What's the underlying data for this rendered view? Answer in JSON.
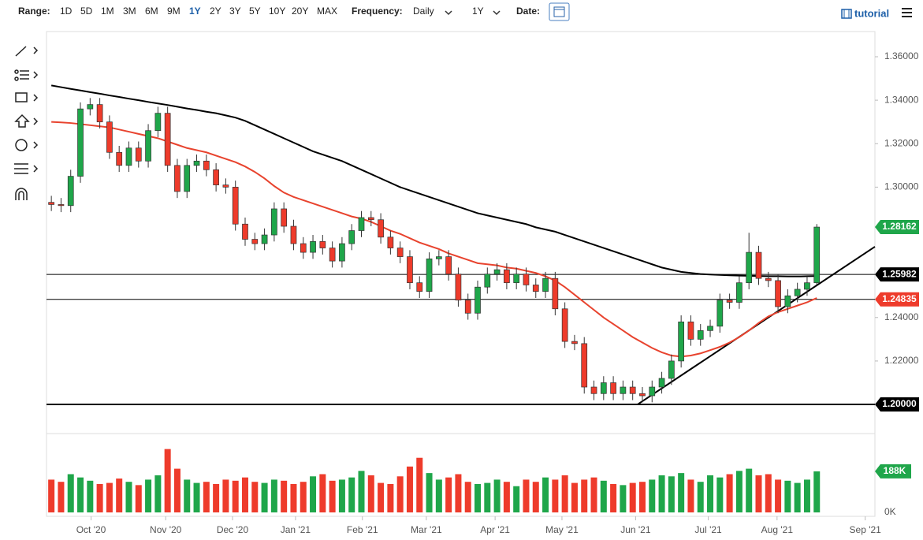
{
  "toolbar": {
    "range_label": "Range:",
    "ranges": [
      "1D",
      "5D",
      "1M",
      "3M",
      "6M",
      "9M",
      "1Y",
      "2Y",
      "3Y",
      "5Y",
      "10Y",
      "20Y",
      "MAX"
    ],
    "selected_range": 6,
    "frequency_label": "Frequency:",
    "frequency": "Daily",
    "period": "1Y",
    "date_label": "Date:",
    "tutorial": "tutorial"
  },
  "chart_data": {
    "type": "candlestick",
    "xlim": [
      -0.5,
      85
    ],
    "xticks": [
      {
        "value": 4.1,
        "label": "Oct '20"
      },
      {
        "value": 11.8,
        "label": "Nov '20"
      },
      {
        "value": 18.7,
        "label": "Dec '20"
      },
      {
        "value": 25.2,
        "label": "Jan '21"
      },
      {
        "value": 32.1,
        "label": "Feb '21"
      },
      {
        "value": 38.7,
        "label": "Mar '21"
      },
      {
        "value": 45.8,
        "label": "Apr '21"
      },
      {
        "value": 52.7,
        "label": "May '21"
      },
      {
        "value": 60.3,
        "label": "Jun '21"
      },
      {
        "value": 67.8,
        "label": "Jul '21"
      },
      {
        "value": 74.9,
        "label": "Aug '21"
      },
      {
        "value": 84.0,
        "label": "Sep '21"
      }
    ],
    "ylim": [
      1.1866,
      1.3716
    ],
    "yticks": [
      {
        "value": 1.36,
        "label": "1.36000"
      },
      {
        "value": 1.34,
        "label": "1.34000"
      },
      {
        "value": 1.32,
        "label": "1.32000"
      },
      {
        "value": 1.3,
        "label": "1.30000"
      },
      {
        "value": 1.24,
        "label": "1.24000"
      },
      {
        "value": 1.22,
        "label": "1.22000"
      }
    ],
    "up_color": "#1fa64a",
    "down_color": "#ee3b2b",
    "open": [
      1.293,
      1.292,
      1.2915,
      1.305,
      1.336,
      1.338,
      1.33,
      1.316,
      1.31,
      1.318,
      1.312,
      1.326,
      1.334,
      1.31,
      1.298,
      1.31,
      1.312,
      1.308,
      1.301,
      1.3,
      1.283,
      1.276,
      1.274,
      1.278,
      1.29,
      1.282,
      1.274,
      1.27,
      1.275,
      1.272,
      1.266,
      1.274,
      1.28,
      1.286,
      1.285,
      1.277,
      1.272,
      1.268,
      1.256,
      1.252,
      1.267,
      1.268,
      1.26,
      1.248,
      1.242,
      1.254,
      1.26,
      1.262,
      1.256,
      1.26,
      1.255,
      1.252,
      1.258,
      1.244,
      1.229,
      1.228,
      1.208,
      1.205,
      1.21,
      1.205,
      1.208,
      1.205,
      1.204,
      1.208,
      1.212,
      1.22,
      1.238,
      1.23,
      1.234,
      1.236,
      1.248,
      1.247,
      1.256,
      1.27,
      1.258,
      1.257,
      1.245,
      1.25,
      1.253,
      1.256
    ],
    "high": [
      1.296,
      1.295,
      1.308,
      1.339,
      1.341,
      1.341,
      1.333,
      1.319,
      1.321,
      1.321,
      1.329,
      1.337,
      1.337,
      1.313,
      1.313,
      1.315,
      1.315,
      1.311,
      1.304,
      1.303,
      1.286,
      1.279,
      1.281,
      1.293,
      1.293,
      1.285,
      1.277,
      1.278,
      1.278,
      1.275,
      1.277,
      1.283,
      1.289,
      1.289,
      1.288,
      1.28,
      1.275,
      1.271,
      1.259,
      1.27,
      1.271,
      1.271,
      1.263,
      1.251,
      1.257,
      1.263,
      1.265,
      1.265,
      1.263,
      1.263,
      1.258,
      1.261,
      1.261,
      1.247,
      1.232,
      1.231,
      1.211,
      1.213,
      1.213,
      1.211,
      1.211,
      1.208,
      1.211,
      1.215,
      1.223,
      1.241,
      1.241,
      1.237,
      1.239,
      1.251,
      1.251,
      1.259,
      1.279,
      1.273,
      1.261,
      1.26,
      1.253,
      1.256,
      1.259,
      1.283
    ],
    "low": [
      1.289,
      1.2885,
      1.2885,
      1.302,
      1.333,
      1.327,
      1.313,
      1.307,
      1.307,
      1.309,
      1.309,
      1.323,
      1.307,
      1.295,
      1.295,
      1.307,
      1.305,
      1.298,
      1.297,
      1.28,
      1.273,
      1.271,
      1.271,
      1.275,
      1.279,
      1.271,
      1.267,
      1.267,
      1.269,
      1.263,
      1.263,
      1.271,
      1.277,
      1.282,
      1.274,
      1.269,
      1.265,
      1.253,
      1.249,
      1.249,
      1.264,
      1.257,
      1.245,
      1.239,
      1.239,
      1.251,
      1.257,
      1.253,
      1.253,
      1.252,
      1.249,
      1.249,
      1.241,
      1.226,
      1.225,
      1.205,
      1.202,
      1.202,
      1.202,
      1.202,
      1.202,
      1.201,
      1.201,
      1.205,
      1.209,
      1.217,
      1.227,
      1.227,
      1.231,
      1.233,
      1.244,
      1.244,
      1.253,
      1.255,
      1.254,
      1.242,
      1.242,
      1.247,
      1.25,
      1.255
    ],
    "close": [
      1.292,
      1.2915,
      1.305,
      1.336,
      1.338,
      1.33,
      1.316,
      1.31,
      1.318,
      1.312,
      1.326,
      1.334,
      1.31,
      1.298,
      1.31,
      1.312,
      1.308,
      1.301,
      1.3,
      1.283,
      1.276,
      1.274,
      1.278,
      1.29,
      1.282,
      1.274,
      1.27,
      1.275,
      1.272,
      1.266,
      1.274,
      1.28,
      1.286,
      1.285,
      1.277,
      1.272,
      1.268,
      1.256,
      1.252,
      1.267,
      1.268,
      1.26,
      1.248,
      1.242,
      1.254,
      1.26,
      1.262,
      1.256,
      1.26,
      1.255,
      1.252,
      1.258,
      1.244,
      1.229,
      1.228,
      1.208,
      1.205,
      1.21,
      1.205,
      1.208,
      1.205,
      1.204,
      1.208,
      1.212,
      1.22,
      1.238,
      1.23,
      1.234,
      1.236,
      1.248,
      1.247,
      1.256,
      1.27,
      1.258,
      1.257,
      1.245,
      1.25,
      1.253,
      1.256,
      1.28162
    ],
    "series": [
      {
        "color": "#e8432e",
        "values": [
          1.33,
          1.3298,
          1.3295,
          1.329,
          1.3285,
          1.328,
          1.3275,
          1.3265,
          1.3255,
          1.3245,
          1.3235,
          1.3225,
          1.321,
          1.3195,
          1.318,
          1.317,
          1.316,
          1.3145,
          1.313,
          1.3115,
          1.3095,
          1.307,
          1.304,
          1.3005,
          1.2975,
          1.2955,
          1.294,
          1.2925,
          1.291,
          1.2895,
          1.288,
          1.2865,
          1.2855,
          1.284,
          1.282,
          1.28,
          1.2785,
          1.2765,
          1.2745,
          1.273,
          1.2715,
          1.2695,
          1.268,
          1.2665,
          1.265,
          1.2645,
          1.264,
          1.263,
          1.2625,
          1.2615,
          1.2605,
          1.259,
          1.257,
          1.254,
          1.2505,
          1.247,
          1.2435,
          1.24,
          1.237,
          1.234,
          1.231,
          1.2285,
          1.226,
          1.224,
          1.2225,
          1.222,
          1.2225,
          1.2235,
          1.225,
          1.2265,
          1.2285,
          1.231,
          1.234,
          1.2375,
          1.2405,
          1.2425,
          1.244,
          1.2455,
          1.247,
          1.249
        ]
      },
      {
        "color": "#000000",
        "values": [
          1.3468,
          1.346,
          1.3452,
          1.3445,
          1.3437,
          1.343,
          1.3422,
          1.3415,
          1.3407,
          1.34,
          1.3392,
          1.3385,
          1.3378,
          1.337,
          1.3362,
          1.3355,
          1.3347,
          1.334,
          1.333,
          1.332,
          1.3305,
          1.3285,
          1.3265,
          1.3245,
          1.3225,
          1.3205,
          1.3185,
          1.3165,
          1.315,
          1.3135,
          1.312,
          1.31,
          1.308,
          1.306,
          1.304,
          1.302,
          1.3,
          1.2985,
          1.297,
          1.2955,
          1.294,
          1.2925,
          1.291,
          1.2895,
          1.288,
          1.287,
          1.286,
          1.285,
          1.284,
          1.283,
          1.2815,
          1.2805,
          1.2795,
          1.278,
          1.2765,
          1.275,
          1.2735,
          1.272,
          1.2705,
          1.269,
          1.2675,
          1.266,
          1.2645,
          1.263,
          1.262,
          1.261,
          1.2605,
          1.26,
          1.2598,
          1.2596,
          1.2594,
          1.2593,
          1.2592,
          1.2591,
          1.259,
          1.259,
          1.2589,
          1.2589,
          1.259,
          1.2591
        ]
      }
    ],
    "levels": [
      {
        "value": 1.25982,
        "color": "#000000"
      },
      {
        "value": 1.24835,
        "color": "#ee3b2b"
      },
      {
        "value": 1.2,
        "label": "1.20000",
        "color": "#000000"
      }
    ],
    "last_price": 1.28162,
    "trendline": {
      "x": [
        60.5,
        85
      ],
      "values": [
        1.2,
        1.2726
      ]
    },
    "volume": [
      150,
      140,
      175,
      160,
      145,
      130,
      135,
      155,
      140,
      125,
      150,
      170,
      290,
      200,
      150,
      135,
      140,
      130,
      150,
      145,
      160,
      140,
      135,
      150,
      145,
      130,
      140,
      165,
      175,
      145,
      150,
      160,
      190,
      170,
      135,
      130,
      165,
      210,
      250,
      180,
      150,
      160,
      175,
      140,
      130,
      135,
      150,
      140,
      120,
      150,
      140,
      160,
      150,
      170,
      135,
      150,
      160,
      145,
      130,
      125,
      135,
      140,
      150,
      170,
      165,
      180,
      150,
      140,
      170,
      160,
      175,
      190,
      200,
      170,
      175,
      150,
      145,
      135,
      150,
      188
    ],
    "volume_lim": [
      0,
      350
    ],
    "volume_ticks": [
      {
        "value": 188,
        "label": "188K"
      },
      {
        "value": 0,
        "label": "0K"
      }
    ]
  }
}
